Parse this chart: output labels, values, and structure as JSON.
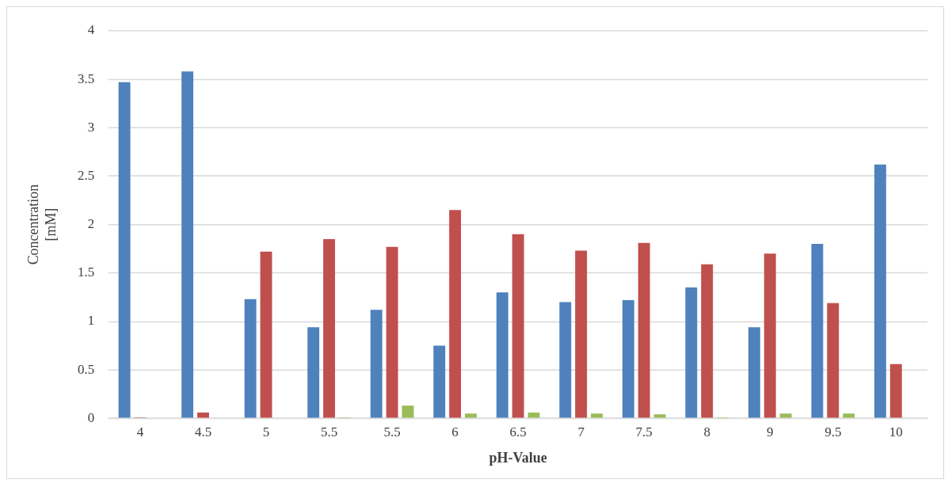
{
  "chart_data": {
    "type": "bar",
    "xlabel": "pH-Value",
    "ylabel": "Concentration [mM]",
    "categories": [
      "4",
      "4.5",
      "5",
      "5.5",
      "5.5",
      "6",
      "6.5",
      "7",
      "7.5",
      "8",
      "9",
      "9.5",
      "10"
    ],
    "series": [
      {
        "color": "#4f81bd",
        "values": [
          3.47,
          3.58,
          1.23,
          0.94,
          1.12,
          0.75,
          1.3,
          1.2,
          1.22,
          1.35,
          0.94,
          1.8,
          2.62
        ]
      },
      {
        "color": "#c0504d",
        "values": [
          0.01,
          0.06,
          1.72,
          1.85,
          1.77,
          2.15,
          1.9,
          1.73,
          1.81,
          1.59,
          1.7,
          1.19,
          0.56
        ]
      },
      {
        "color": "#9bbb59",
        "values": [
          0,
          0,
          0,
          0.01,
          0.13,
          0.05,
          0.06,
          0.05,
          0.04,
          0.01,
          0.05,
          0.05,
          0
        ]
      }
    ],
    "ylim": [
      0,
      4
    ],
    "yticks": [
      0,
      0.5,
      1,
      1.5,
      2,
      2.5,
      3,
      3.5,
      4
    ],
    "grid": "y",
    "legend": false
  }
}
